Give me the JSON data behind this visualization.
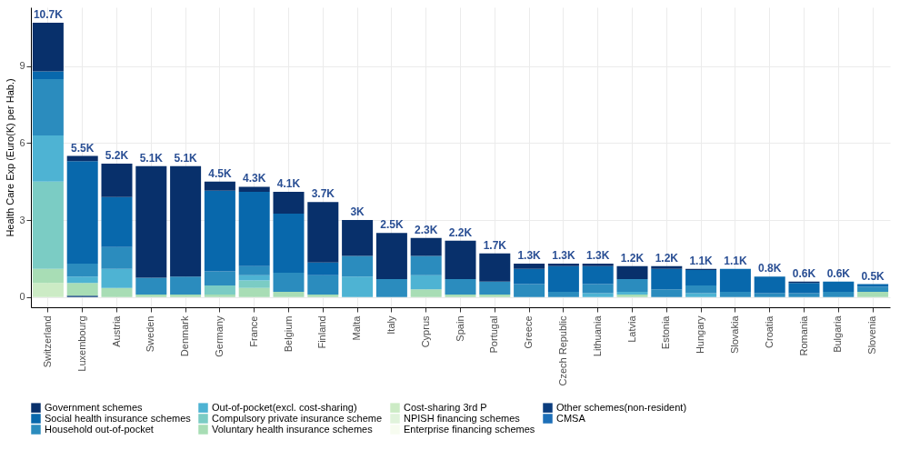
{
  "chart_data": {
    "type": "bar",
    "stacked": true,
    "ylabel": "Health Care Exp (Euro(K) per Hab.)",
    "categories": [
      "Switzerland",
      "Luxembourg",
      "Austria",
      "Sweden",
      "Denmark",
      "Germany",
      "France",
      "Belgium",
      "Finland",
      "Malta",
      "Italy",
      "Cyprus",
      "Spain",
      "Portugal",
      "Greece",
      "Czech Republic",
      "Lithuania",
      "Latvia",
      "Estonia",
      "Hungary",
      "Slovakia",
      "Croatia",
      "Romania",
      "Bulgaria",
      "Slovenia"
    ],
    "series": [
      {
        "name": "CMSA",
        "color": "#1d6fb8",
        "values": [
          null,
          null,
          null,
          null,
          null,
          null,
          null,
          null,
          null,
          null,
          null,
          null,
          null,
          null,
          null,
          null,
          null,
          null,
          null,
          null,
          null,
          null,
          null,
          null,
          null
        ]
      },
      {
        "name": "Other schemes(non-resident)",
        "color": "#0b3d7e",
        "values": [
          null,
          0.05,
          null,
          null,
          null,
          null,
          null,
          null,
          null,
          null,
          null,
          null,
          null,
          null,
          null,
          null,
          null,
          null,
          null,
          null,
          null,
          null,
          null,
          null,
          null
        ]
      },
      {
        "name": "Enterprise financing schemes",
        "color": "#f7fcf0",
        "values": [
          null,
          null,
          null,
          null,
          null,
          null,
          null,
          null,
          null,
          null,
          null,
          null,
          null,
          null,
          null,
          null,
          null,
          null,
          null,
          null,
          null,
          null,
          null,
          null,
          null
        ]
      },
      {
        "name": "NPISH financing schemes",
        "color": "#e0f3db",
        "values": [
          null,
          null,
          null,
          null,
          null,
          null,
          null,
          null,
          null,
          null,
          null,
          null,
          null,
          null,
          null,
          null,
          null,
          null,
          null,
          null,
          null,
          null,
          null,
          null,
          null
        ]
      },
      {
        "name": "Cost-sharing 3rd P",
        "color": "#ccebc5",
        "values": [
          0.55,
          null,
          null,
          null,
          null,
          null,
          null,
          null,
          null,
          null,
          null,
          null,
          null,
          null,
          null,
          null,
          null,
          null,
          null,
          null,
          null,
          null,
          null,
          null,
          null
        ]
      },
      {
        "name": "Voluntary health insurance schemes",
        "color": "#a8ddb5",
        "values": [
          0.55,
          0.5,
          0.35,
          0.1,
          0.1,
          0.1,
          0.35,
          0.2,
          0.1,
          null,
          null,
          0.3,
          0.1,
          0.1,
          null,
          null,
          null,
          0.1,
          null,
          null,
          null,
          null,
          null,
          null,
          0.2
        ]
      },
      {
        "name": "Compulsory private insurance scheme",
        "color": "#7bccc4",
        "values": [
          3.4,
          null,
          null,
          null,
          null,
          0.35,
          0.3,
          null,
          null,
          null,
          null,
          null,
          null,
          null,
          null,
          null,
          null,
          null,
          null,
          null,
          null,
          null,
          null,
          null,
          null
        ]
      },
      {
        "name": "Out-of-pocket(excl. cost-sharing)",
        "color": "#4eb3d3",
        "values": [
          1.8,
          0.25,
          0.75,
          null,
          null,
          null,
          0.2,
          null,
          null,
          0.8,
          null,
          0.55,
          null,
          null,
          null,
          null,
          0.15,
          0.1,
          null,
          0.15,
          null,
          null,
          null,
          null,
          null
        ]
      },
      {
        "name": "Household out-of-pocket",
        "color": "#2b8cbe",
        "values": [
          2.2,
          0.5,
          0.85,
          0.65,
          0.7,
          0.55,
          0.35,
          0.75,
          0.75,
          0.8,
          0.7,
          0.75,
          0.6,
          0.5,
          0.5,
          0.2,
          0.35,
          0.5,
          0.3,
          0.3,
          0.2,
          0.15,
          0.15,
          0.2,
          0.2
        ]
      },
      {
        "name": "Social health insurance schemes",
        "color": "#0868ac",
        "values": [
          0.3,
          4.0,
          1.95,
          null,
          null,
          3.15,
          2.9,
          2.3,
          0.5,
          null,
          null,
          null,
          null,
          null,
          0.6,
          1.0,
          0.7,
          null,
          0.8,
          0.6,
          0.9,
          0.65,
          0.4,
          0.4,
          0.1
        ]
      },
      {
        "name": "Government schemes",
        "color": "#08306b",
        "values": [
          1.9,
          0.2,
          1.3,
          4.35,
          4.3,
          0.35,
          0.2,
          0.85,
          2.35,
          1.4,
          1.8,
          0.7,
          1.5,
          1.1,
          0.2,
          0.1,
          0.1,
          0.5,
          0.1,
          0.05,
          null,
          null,
          0.05,
          null,
          null
        ]
      }
    ],
    "totals": [
      "10.7K",
      "5.5K",
      "5.2K",
      "5.1K",
      "5.1K",
      "4.5K",
      "4.3K",
      "4.1K",
      "3.7K",
      "3K",
      "2.5K",
      "2.3K",
      "2.2K",
      "1.7K",
      "1.3K",
      "1.3K",
      "1.3K",
      "1.2K",
      "1.2K",
      "1.1K",
      "1.1K",
      "0.8K",
      "0.6K",
      "0.6K",
      "0.5K"
    ],
    "ylim": [
      -0.4,
      11.3
    ],
    "yticks": [
      0,
      3,
      6,
      9
    ],
    "grid": true,
    "legend": "bottom"
  }
}
